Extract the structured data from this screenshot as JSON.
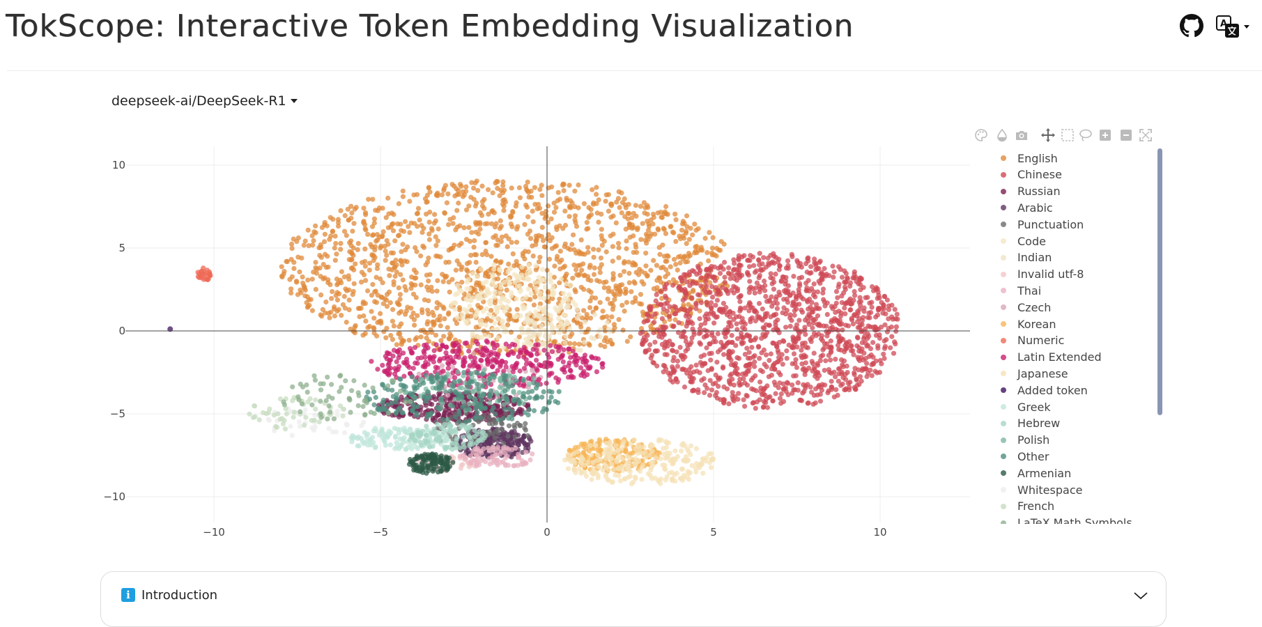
{
  "header": {
    "title": "TokScope: Interactive Token Embedding Visualization",
    "github_icon": "github-icon",
    "language_icon": "translate-icon"
  },
  "model_selector": {
    "selected": "deepseek-ai/DeepSeek-R1"
  },
  "toolbar": {
    "tools": [
      {
        "name": "palette-icon"
      },
      {
        "name": "opacity-drop-icon"
      },
      {
        "name": "camera-icon"
      },
      {
        "name": "pan-icon"
      },
      {
        "name": "box-select-icon"
      },
      {
        "name": "lasso-select-icon"
      },
      {
        "name": "zoom-in-icon"
      },
      {
        "name": "zoom-out-icon"
      },
      {
        "name": "autoscale-icon"
      }
    ]
  },
  "chart_data": {
    "type": "scatter",
    "xlim": [
      -12.5,
      12.7
    ],
    "ylim": [
      -11.8,
      11.0
    ],
    "xticks": [
      -10,
      -5,
      0,
      5,
      10
    ],
    "yticks": [
      -10,
      -5,
      0,
      5,
      10
    ],
    "grid": true,
    "legend_placement": "right",
    "series": [
      {
        "name": "English",
        "color": "#e08a3a",
        "cx": -1.2,
        "cy": 3.8,
        "rx": 6.8,
        "ry": 5.3,
        "n": 1500
      },
      {
        "name": "Chinese",
        "color": "#cf4a55",
        "cx": 6.7,
        "cy": 0.0,
        "rx": 3.9,
        "ry": 4.7,
        "n": 1300
      },
      {
        "name": "Russian",
        "color": "#7a2252",
        "cx": -2.8,
        "cy": -4.6,
        "rx": 2.3,
        "ry": 0.9,
        "n": 320
      },
      {
        "name": "Arabic",
        "color": "#5f3560",
        "cx": -1.6,
        "cy": -6.8,
        "rx": 1.2,
        "ry": 0.9,
        "n": 220
      },
      {
        "name": "Punctuation",
        "color": "#6b6b6b",
        "cx": -2.0,
        "cy": -6.0,
        "rx": 1.5,
        "ry": 1.2,
        "n": 80
      },
      {
        "name": "Code",
        "color": "#f4e6c2",
        "cx": -1.0,
        "cy": 1.5,
        "rx": 2.0,
        "ry": 2.6,
        "n": 260
      },
      {
        "name": "Indian",
        "color": "#efe3c7",
        "cx": 0.5,
        "cy": 0.0,
        "rx": 1.4,
        "ry": 1.6,
        "n": 60
      },
      {
        "name": "Invalid utf-8",
        "color": "#f2c7c7",
        "cx": -3.0,
        "cy": -8.0,
        "rx": 1.0,
        "ry": 0.5,
        "n": 40
      },
      {
        "name": "Thai",
        "color": "#eab1c2",
        "cx": -1.5,
        "cy": -7.6,
        "rx": 1.2,
        "ry": 0.6,
        "n": 80
      },
      {
        "name": "Czech",
        "color": "#d8a6b8",
        "cx": -2.0,
        "cy": -2.8,
        "rx": 2.0,
        "ry": 1.5,
        "n": 60
      },
      {
        "name": "Korean",
        "color": "#f7b557",
        "cx": 2.0,
        "cy": -7.5,
        "rx": 1.4,
        "ry": 1.0,
        "n": 180
      },
      {
        "name": "Numeric",
        "color": "#ef6a55",
        "cx": -10.3,
        "cy": 3.4,
        "rx": 0.2,
        "ry": 0.4,
        "n": 25
      },
      {
        "name": "Latin Extended",
        "color": "#c9206e",
        "cx": -1.8,
        "cy": -2.0,
        "rx": 3.5,
        "ry": 1.4,
        "n": 360
      },
      {
        "name": "Japanese",
        "color": "#f6e1b7",
        "cx": 2.8,
        "cy": -7.9,
        "rx": 2.3,
        "ry": 1.4,
        "n": 240
      },
      {
        "name": "Added token",
        "color": "#3d1462",
        "cx": -11.3,
        "cy": 0.1,
        "rx": 0.05,
        "ry": 0.05,
        "n": 1
      },
      {
        "name": "Greek",
        "color": "#bfe6d9",
        "cx": -4.5,
        "cy": -6.5,
        "rx": 1.6,
        "ry": 0.7,
        "n": 120
      },
      {
        "name": "Hebrew",
        "color": "#a6d6c4",
        "cx": -3.0,
        "cy": -6.4,
        "rx": 1.2,
        "ry": 0.8,
        "n": 100
      },
      {
        "name": "Polish",
        "color": "#7fb7a2",
        "cx": -2.2,
        "cy": -3.6,
        "rx": 2.2,
        "ry": 1.3,
        "n": 110
      },
      {
        "name": "Other",
        "color": "#4f8f7f",
        "cx": -2.5,
        "cy": -4.0,
        "rx": 3.0,
        "ry": 1.5,
        "n": 220
      },
      {
        "name": "Armenian",
        "color": "#2c5a46",
        "cx": -3.5,
        "cy": -8.0,
        "rx": 0.7,
        "ry": 0.6,
        "n": 110
      },
      {
        "name": "Whitespace",
        "color": "#ececec",
        "cx": -7.0,
        "cy": -5.5,
        "rx": 1.5,
        "ry": 1.0,
        "n": 40
      },
      {
        "name": "French",
        "color": "#c7dcc0",
        "cx": -7.5,
        "cy": -5.0,
        "rx": 1.5,
        "ry": 1.0,
        "n": 50
      },
      {
        "name": "LaTeX Math Symbols",
        "color": "#8eaf8e",
        "cx": -6.0,
        "cy": -4.0,
        "rx": 2.0,
        "ry": 1.5,
        "n": 60
      }
    ]
  },
  "intro": {
    "label": "Introduction"
  }
}
